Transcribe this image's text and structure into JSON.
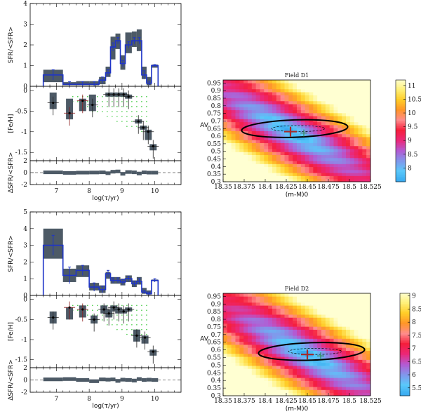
{
  "chart_data": [
    {
      "type": "bar",
      "panel": "D1-sfr",
      "ylabel": "SFR/<SFR>",
      "ylim": [
        0,
        4
      ],
      "yticks": [
        "0",
        "1",
        "2",
        "3",
        "4"
      ],
      "bins": [
        [
          6.6,
          7.2
        ],
        [
          7.2,
          7.6
        ],
        [
          7.6,
          8.0
        ],
        [
          8.0,
          8.3
        ],
        [
          8.3,
          8.5
        ],
        [
          8.5,
          8.65
        ],
        [
          8.65,
          8.8
        ],
        [
          8.8,
          8.95
        ],
        [
          8.95,
          9.1
        ],
        [
          9.1,
          9.3
        ],
        [
          9.3,
          9.45
        ],
        [
          9.45,
          9.6
        ],
        [
          9.6,
          9.75
        ],
        [
          9.75,
          9.9
        ],
        [
          9.9,
          10.1
        ]
      ],
      "values": [
        0.55,
        0.1,
        0.1,
        0.1,
        0.3,
        0.65,
        1.9,
        2.2,
        1.1,
        2.0,
        2.2,
        2.2,
        0.55,
        0.15,
        1.0
      ],
      "err_lo": [
        0.25,
        0.1,
        0.1,
        0.1,
        0.15,
        0.15,
        0.2,
        0.15,
        0.15,
        0.15,
        0.15,
        0.15,
        0.2,
        0.1,
        0.05
      ],
      "err_hi": [
        0.25,
        0.12,
        0.12,
        0.12,
        0.15,
        0.15,
        0.2,
        0.15,
        0.15,
        0.15,
        0.15,
        0.15,
        0.2,
        0.1,
        0.05
      ],
      "box_lo": [
        0.2,
        0.05,
        0.05,
        0.05,
        0.1,
        0.45,
        1.3,
        1.8,
        0.8,
        1.6,
        1.9,
        1.7,
        0.35,
        0.05,
        0.9
      ],
      "box_hi": [
        0.8,
        0.2,
        0.25,
        0.25,
        0.45,
        0.95,
        2.4,
        2.55,
        1.5,
        2.6,
        2.65,
        2.75,
        0.95,
        0.45,
        1.05
      ]
    },
    {
      "type": "scatter",
      "panel": "D1-feh",
      "ylabel": "[Fe/H]",
      "ylim": [
        -1.7,
        0.1
      ],
      "yticks": [
        "-1.5",
        "-1",
        "-0.5",
        "0"
      ],
      "x": [
        6.9,
        7.4,
        7.8,
        8.1,
        8.6,
        8.75,
        8.9,
        9.05,
        9.2,
        9.5,
        9.65,
        9.8,
        9.95
      ],
      "y": [
        -0.3,
        -0.55,
        -0.25,
        -0.35,
        -0.1,
        -0.1,
        -0.1,
        -0.1,
        -0.15,
        -0.75,
        -0.9,
        -1.0,
        -1.35
      ],
      "box_lo": [
        -0.45,
        -0.7,
        -0.5,
        -0.5,
        -0.15,
        -0.15,
        -0.15,
        -0.15,
        -0.2,
        -0.8,
        -0.95,
        -1.2,
        -1.45
      ],
      "box_hi": [
        -0.05,
        -0.2,
        -0.2,
        -0.1,
        -0.05,
        -0.05,
        -0.05,
        -0.05,
        -0.1,
        -0.7,
        -0.85,
        -0.95,
        -1.3
      ]
    },
    {
      "type": "bar",
      "panel": "D1-residual",
      "ylabel": "ΔSFR/<SFR>",
      "ylim": [
        -2,
        2
      ],
      "yticks": [
        "-2",
        "0",
        "2"
      ],
      "values": [
        0.05,
        -0.05,
        0.0,
        0.02,
        0.05,
        -0.1,
        0.15,
        0.2,
        -0.2,
        0.1,
        0.05,
        -0.15,
        0.05,
        0.0,
        0.0
      ]
    },
    {
      "type": "bar",
      "panel": "D2-sfr",
      "ylabel": "SFR/<SFR>",
      "ylim": [
        0,
        5
      ],
      "yticks": [
        "0",
        "1",
        "2",
        "3",
        "4",
        "5"
      ],
      "bins": [
        [
          6.6,
          7.2
        ],
        [
          7.2,
          7.6
        ],
        [
          7.6,
          8.0
        ],
        [
          8.0,
          8.3
        ],
        [
          8.3,
          8.5
        ],
        [
          8.5,
          8.65
        ],
        [
          8.65,
          8.8
        ],
        [
          8.8,
          8.95
        ],
        [
          8.95,
          9.1
        ],
        [
          9.1,
          9.3
        ],
        [
          9.3,
          9.45
        ],
        [
          9.45,
          9.6
        ],
        [
          9.6,
          9.75
        ],
        [
          9.75,
          9.9
        ],
        [
          9.9,
          10.1
        ]
      ],
      "values": [
        3.0,
        1.2,
        1.5,
        0.5,
        0.35,
        1.3,
        0.9,
        0.9,
        0.8,
        1.0,
        0.7,
        0.85,
        0.2,
        0.1,
        0.9
      ],
      "err_lo": [
        0.6,
        0.5,
        0.3,
        0.25,
        0.2,
        0.2,
        0.15,
        0.15,
        0.15,
        0.15,
        0.15,
        0.15,
        0.1,
        0.1,
        0.1
      ],
      "err_hi": [
        0.6,
        0.5,
        0.3,
        0.25,
        0.2,
        0.2,
        0.15,
        0.15,
        0.15,
        0.15,
        0.15,
        0.15,
        0.1,
        0.1,
        0.1
      ],
      "box_lo": [
        2.2,
        0.8,
        1.1,
        0.3,
        0.15,
        1.0,
        0.7,
        0.7,
        0.6,
        0.8,
        0.5,
        0.65,
        0.1,
        0.05,
        0.85
      ],
      "box_hi": [
        4.0,
        1.6,
        1.8,
        0.75,
        0.6,
        1.4,
        1.1,
        1.1,
        1.0,
        1.2,
        0.9,
        1.1,
        0.45,
        0.3,
        0.95
      ]
    },
    {
      "type": "scatter",
      "panel": "D2-feh",
      "ylabel": "[Fe/H]",
      "ylim": [
        -1.7,
        0.1
      ],
      "yticks": [
        "-1.5",
        "-1",
        "-0.5",
        "0"
      ],
      "x": [
        6.9,
        7.4,
        7.8,
        8.15,
        8.45,
        8.6,
        8.75,
        8.9,
        9.05,
        9.2,
        9.45,
        9.7,
        9.95
      ],
      "y": [
        -0.45,
        -0.2,
        -0.25,
        -0.5,
        -0.25,
        -0.35,
        -0.2,
        -0.25,
        -0.3,
        -0.25,
        -0.9,
        -0.95,
        -1.3
      ],
      "box_lo": [
        -0.6,
        -0.5,
        -0.45,
        -0.6,
        -0.35,
        -0.45,
        -0.3,
        -0.35,
        -0.35,
        -0.3,
        -1.05,
        -1.1,
        -1.4
      ],
      "box_hi": [
        -0.3,
        -0.2,
        -0.15,
        -0.4,
        -0.15,
        -0.25,
        -0.15,
        -0.2,
        -0.25,
        -0.2,
        -0.75,
        -0.9,
        -1.25
      ]
    },
    {
      "type": "bar",
      "panel": "D2-residual",
      "ylabel": "ΔSFR/<SFR>",
      "ylim": [
        -2,
        2
      ],
      "yticks": [
        "-2",
        "0",
        "2"
      ],
      "values": [
        0.1,
        0.15,
        0.0,
        -0.2,
        0.1,
        0.05,
        0.1,
        -0.15,
        0.05,
        0.0,
        -0.1,
        0.15,
        0.0,
        0.05,
        0.0
      ]
    },
    {
      "type": "heatmap",
      "panel": "Field D1",
      "title": "Field D1",
      "xlabel": "(m-M)0",
      "ylabel": "AV",
      "xlim": [
        18.35,
        18.525
      ],
      "ylim": [
        0.3,
        0.97
      ],
      "xticks": [
        "18.35",
        "18.375",
        "18.4",
        "18.425",
        "18.45",
        "18.475",
        "18.5",
        "18.525"
      ],
      "yticks": [
        "0.3",
        "0.35",
        "0.4",
        "0.45",
        "0.5",
        "0.55",
        "0.6",
        "0.65",
        "0.7",
        "0.75",
        "0.8",
        "0.85",
        "0.9",
        "0.95"
      ],
      "best_fit": [
        18.43,
        0.63
      ],
      "colorbar_range": [
        7.5,
        11.2
      ],
      "colorbar_ticks": [
        "8",
        "8.5",
        "9",
        "9.5",
        "10",
        "10.5",
        "11"
      ]
    },
    {
      "type": "heatmap",
      "panel": "Field D2",
      "title": "Field D2",
      "xlabel": "(m-M)0",
      "ylabel": "AV",
      "xlim": [
        18.35,
        18.525
      ],
      "ylim": [
        0.3,
        0.97
      ],
      "xticks": [
        "18.35",
        "18.375",
        "18.4",
        "18.425",
        "18.45",
        "18.475",
        "18.5",
        "18.525"
      ],
      "yticks": [
        "0.3",
        "0.35",
        "0.4",
        "0.45",
        "0.5",
        "0.55",
        "0.6",
        "0.65",
        "0.7",
        "0.75",
        "0.8",
        "0.85",
        "0.9",
        "0.95"
      ],
      "best_fit": [
        18.45,
        0.57
      ],
      "colorbar_range": [
        5.2,
        9.1
      ],
      "colorbar_ticks": [
        "5.5",
        "6",
        "6.5",
        "7",
        "7.5",
        "8",
        "8.5",
        "9"
      ]
    }
  ],
  "shared": {
    "xlabel": "log(τ/yr)",
    "xticks": [
      "7",
      "8",
      "9",
      "10"
    ],
    "xlim": [
      6.2,
      10.8
    ]
  },
  "colors": {
    "box": "#4d5a66",
    "line": "#1f35c8",
    "errbar": "#222222",
    "redbar": "#8b1a1a",
    "greendot": "#44cc44",
    "contour": "#000000",
    "best_fit": "#a52a2a",
    "alt_fit": "#2e8b57"
  }
}
